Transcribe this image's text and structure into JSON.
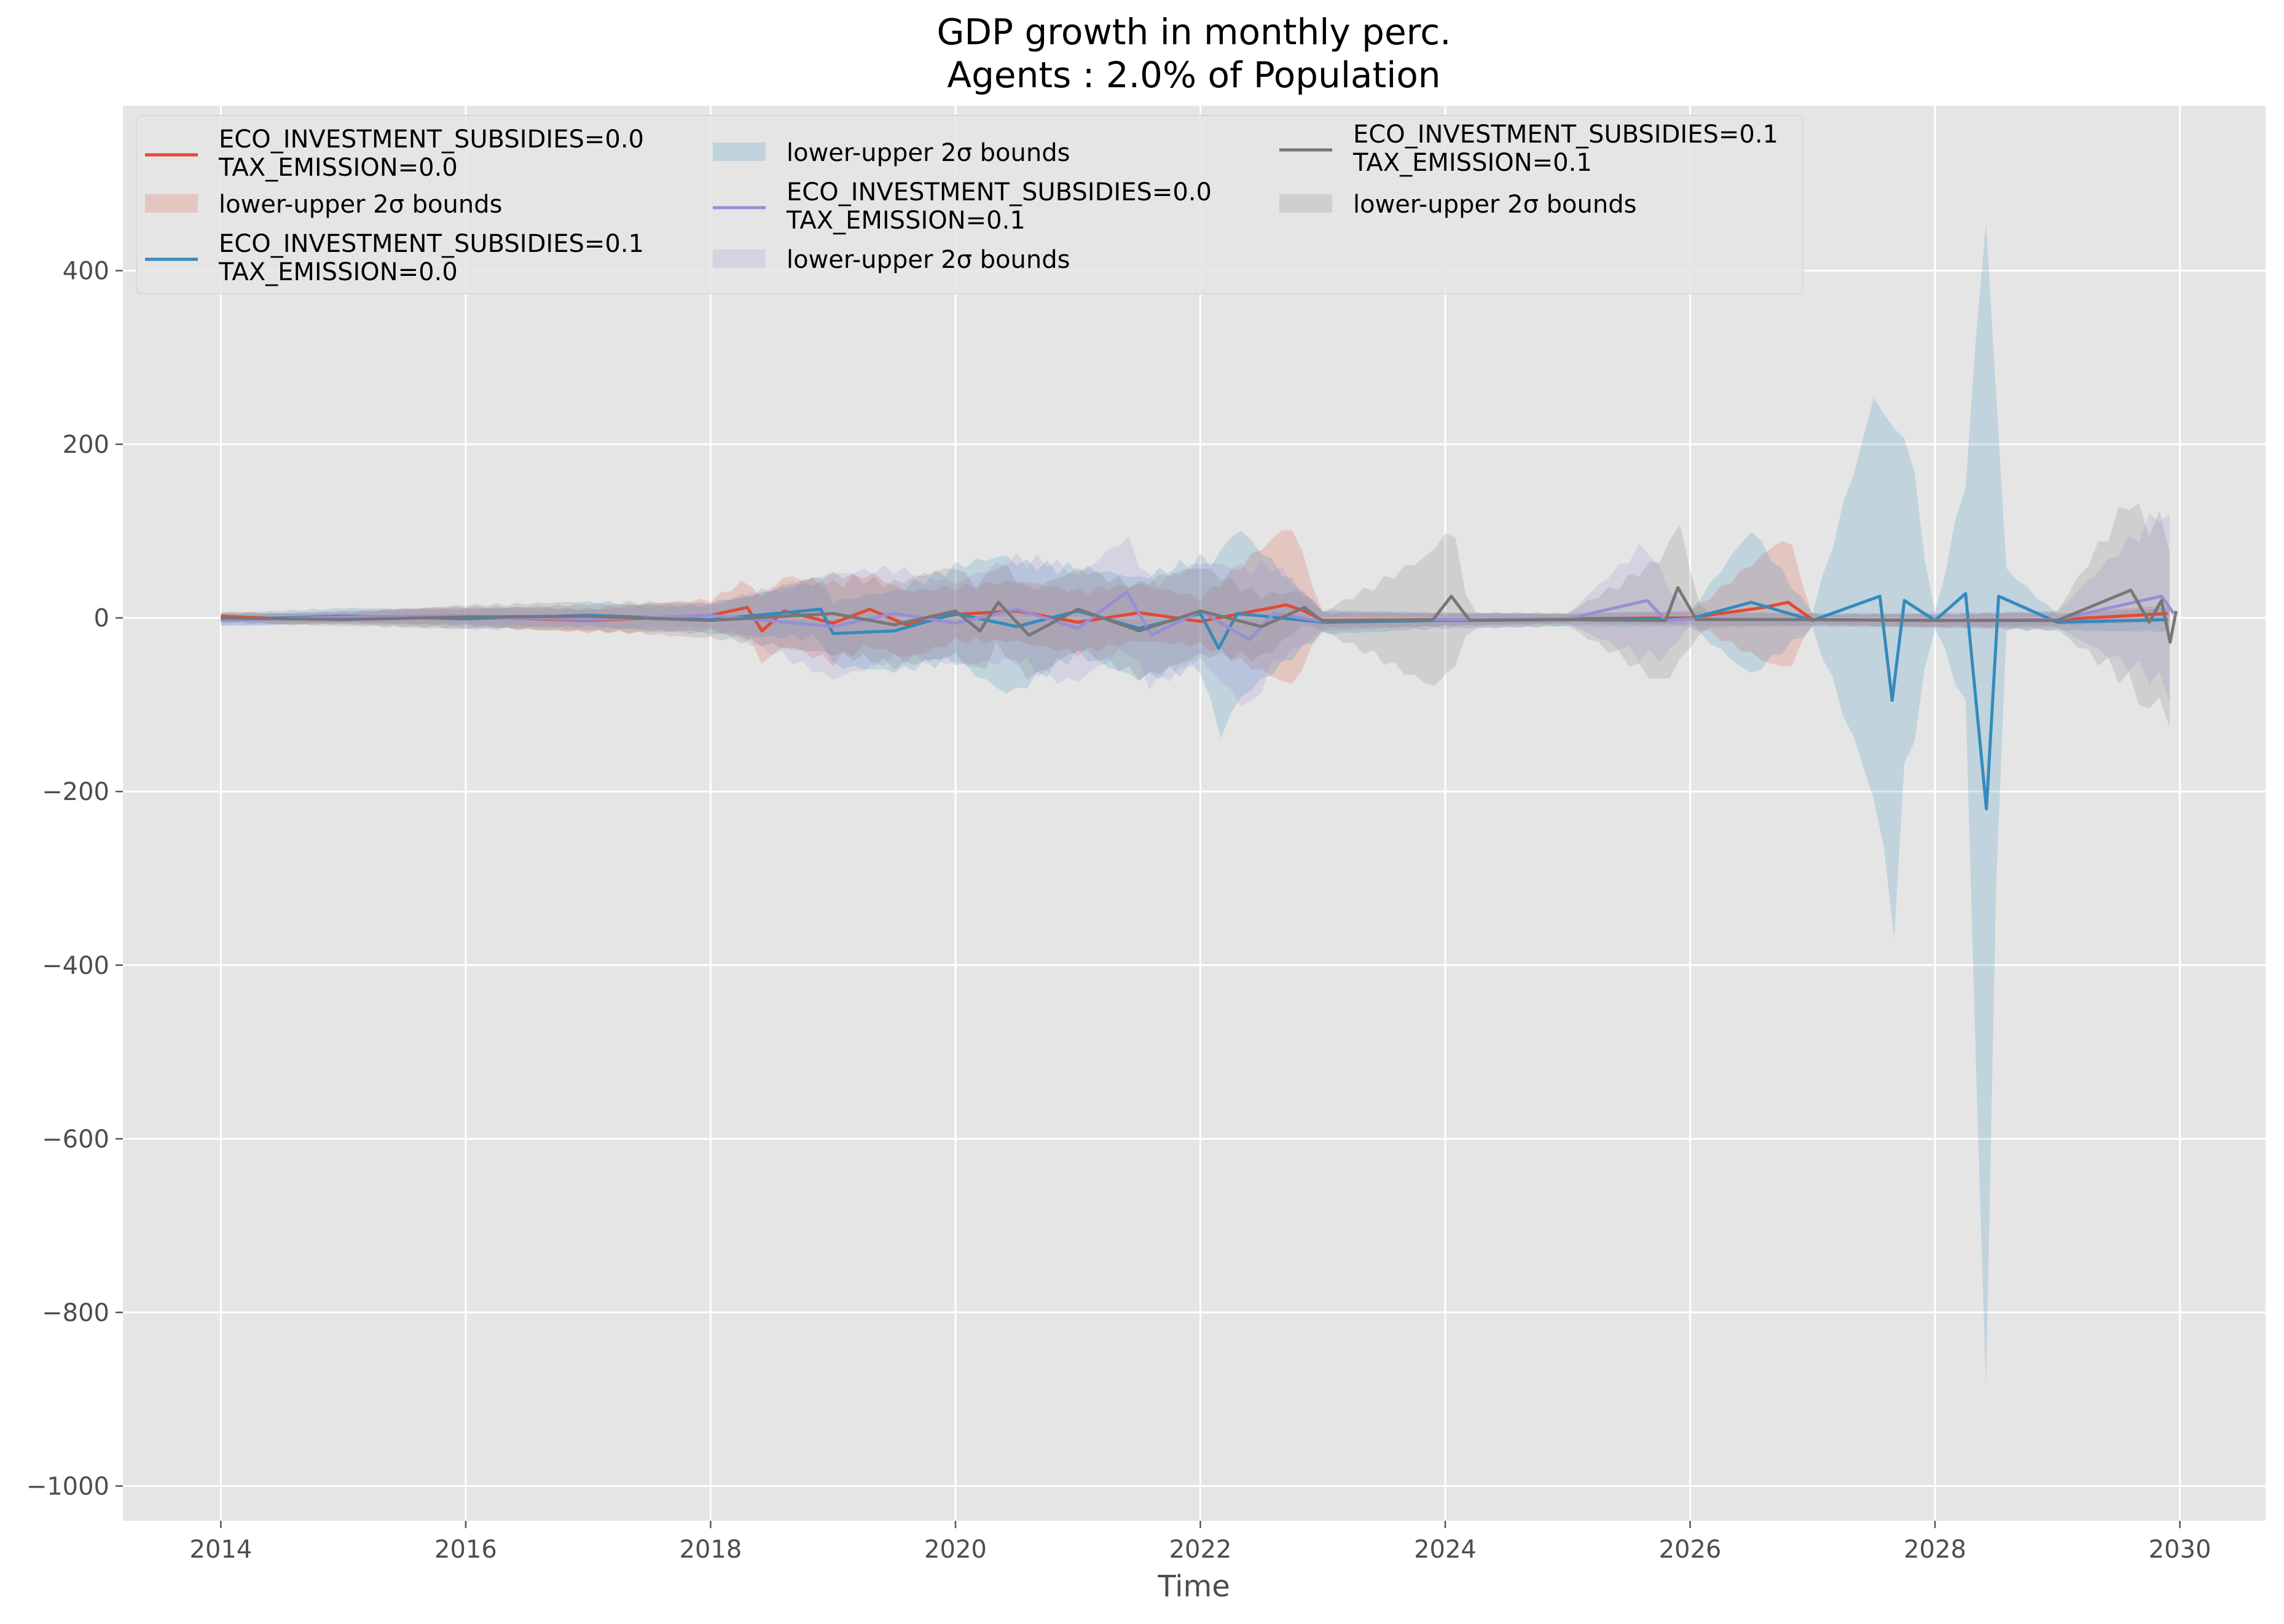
{
  "chart_data": {
    "type": "line",
    "title": "GDP growth in monthly perc.",
    "subtitle": "Agents : 2.0% of Population",
    "xlabel": "Time",
    "ylabel": "",
    "xlim": [
      2013.2,
      2030.7
    ],
    "ylim": [
      -1040,
      590
    ],
    "xticks": [
      2014,
      2016,
      2018,
      2020,
      2022,
      2024,
      2026,
      2028,
      2030
    ],
    "xtick_labels": [
      "2014",
      "2016",
      "2018",
      "2020",
      "2022",
      "2024",
      "2026",
      "2028",
      "2030"
    ],
    "yticks": [
      400,
      200,
      0,
      -200,
      -400,
      -600,
      -800,
      -1000
    ],
    "ytick_labels": [
      "400",
      "200",
      "0",
      "−200",
      "−400",
      "−600",
      "−800",
      "−1000"
    ],
    "grid": true,
    "legend_position": "top-left",
    "band_label": "lower-upper 2σ bounds",
    "colors": {
      "background": "#e5e5e5",
      "grid": "#ffffff",
      "red": "#e24a33",
      "blue": "#348abd",
      "purple": "#988ed5",
      "gray": "#777777"
    },
    "series": [
      {
        "line1": "ECO_INVESTMENT_SUBSIDIES=0.0",
        "line2": "TAX_EMISSION=0.0",
        "color": "#e24a33",
        "points": [
          [
            2014,
            2
          ],
          [
            2014.5,
            -1
          ],
          [
            2015,
            1
          ],
          [
            2016,
            2
          ],
          [
            2017,
            -3
          ],
          [
            2018,
            3
          ],
          [
            2018.3,
            12
          ],
          [
            2018.42,
            -15
          ],
          [
            2018.6,
            8
          ],
          [
            2019,
            -6
          ],
          [
            2019.3,
            10
          ],
          [
            2019.6,
            -8
          ],
          [
            2020,
            4
          ],
          [
            2020.5,
            8
          ],
          [
            2021,
            -5
          ],
          [
            2021.5,
            6
          ],
          [
            2022,
            -4
          ],
          [
            2022.7,
            15
          ],
          [
            2022.85,
            8
          ],
          [
            2023,
            -3
          ],
          [
            2024,
            -2
          ],
          [
            2025,
            -1
          ],
          [
            2026,
            0
          ],
          [
            2026.6,
            12
          ],
          [
            2026.8,
            18
          ],
          [
            2027,
            -2
          ],
          [
            2028,
            -3
          ],
          [
            2029,
            -2
          ],
          [
            2029.9,
            5
          ]
        ],
        "band": [
          [
            2014,
            6
          ],
          [
            2015,
            7
          ],
          [
            2016,
            12
          ],
          [
            2017,
            15
          ],
          [
            2018,
            20
          ],
          [
            2018.4,
            40
          ],
          [
            2019,
            50
          ],
          [
            2020,
            35
          ],
          [
            2021,
            40
          ],
          [
            2022,
            30
          ],
          [
            2022.75,
            100
          ],
          [
            2023,
            10
          ],
          [
            2024,
            8
          ],
          [
            2025,
            6
          ],
          [
            2026,
            8
          ],
          [
            2026.8,
            85
          ],
          [
            2027,
            6
          ],
          [
            2028,
            8
          ],
          [
            2029,
            8
          ],
          [
            2029.9,
            10
          ]
        ]
      },
      {
        "line1": "ECO_INVESTMENT_SUBSIDIES=0.1",
        "line2": "TAX_EMISSION=0.0",
        "color": "#348abd",
        "points": [
          [
            2014,
            -2
          ],
          [
            2015,
            2
          ],
          [
            2016,
            -1
          ],
          [
            2017,
            3
          ],
          [
            2018,
            -2
          ],
          [
            2018.9,
            10
          ],
          [
            2019,
            -18
          ],
          [
            2019.5,
            -15
          ],
          [
            2020,
            5
          ],
          [
            2020.5,
            -10
          ],
          [
            2021,
            8
          ],
          [
            2021.5,
            -12
          ],
          [
            2022,
            5
          ],
          [
            2022.15,
            -35
          ],
          [
            2022.3,
            5
          ],
          [
            2023,
            -5
          ],
          [
            2024,
            -3
          ],
          [
            2025,
            -2
          ],
          [
            2026,
            -1
          ],
          [
            2026.5,
            18
          ],
          [
            2027,
            -3
          ],
          [
            2027.55,
            25
          ],
          [
            2027.65,
            -95
          ],
          [
            2027.75,
            20
          ],
          [
            2028,
            -3
          ],
          [
            2028.25,
            28
          ],
          [
            2028.42,
            -220
          ],
          [
            2028.52,
            25
          ],
          [
            2029,
            -5
          ],
          [
            2029.9,
            -2
          ]
        ],
        "band": [
          [
            2014,
            8
          ],
          [
            2015,
            10
          ],
          [
            2016,
            12
          ],
          [
            2017,
            14
          ],
          [
            2018,
            18
          ],
          [
            2019,
            40
          ],
          [
            2020,
            60
          ],
          [
            2020.4,
            85
          ],
          [
            2021,
            55
          ],
          [
            2022,
            70
          ],
          [
            2022.2,
            120
          ],
          [
            2023,
            15
          ],
          [
            2024,
            10
          ],
          [
            2025,
            8
          ],
          [
            2026,
            10
          ],
          [
            2026.5,
            90
          ],
          [
            2027,
            10
          ],
          [
            2027.65,
            315
          ],
          [
            2028,
            10
          ],
          [
            2028.25,
            140
          ],
          [
            2028.42,
            740
          ],
          [
            2028.55,
            40
          ],
          [
            2029,
            10
          ],
          [
            2029.9,
            15
          ]
        ]
      },
      {
        "line1": "ECO_INVESTMENT_SUBSIDIES=0.0",
        "line2": "TAX_EMISSION=0.1",
        "color": "#988ed5",
        "points": [
          [
            2014,
            -3
          ],
          [
            2015,
            1
          ],
          [
            2016,
            2
          ],
          [
            2017,
            -2
          ],
          [
            2018,
            3
          ],
          [
            2019,
            -10
          ],
          [
            2019.5,
            5
          ],
          [
            2020,
            -6
          ],
          [
            2020.5,
            10
          ],
          [
            2021,
            -12
          ],
          [
            2021.4,
            30
          ],
          [
            2021.6,
            -20
          ],
          [
            2022,
            8
          ],
          [
            2022.4,
            -25
          ],
          [
            2022.6,
            5
          ],
          [
            2023,
            -4
          ],
          [
            2024,
            -2
          ],
          [
            2025,
            -1
          ],
          [
            2025.65,
            20
          ],
          [
            2025.8,
            -3
          ],
          [
            2026,
            -1
          ],
          [
            2027,
            -2
          ],
          [
            2028,
            -3
          ],
          [
            2029,
            -2
          ],
          [
            2029.85,
            25
          ],
          [
            2029.95,
            5
          ]
        ],
        "band": [
          [
            2014,
            6
          ],
          [
            2015,
            8
          ],
          [
            2016,
            10
          ],
          [
            2017,
            12
          ],
          [
            2018,
            15
          ],
          [
            2018.8,
            55
          ],
          [
            2019,
            65
          ],
          [
            2020,
            50
          ],
          [
            2020.8,
            75
          ],
          [
            2021,
            65
          ],
          [
            2021.4,
            70
          ],
          [
            2022,
            60
          ],
          [
            2022.4,
            90
          ],
          [
            2023,
            12
          ],
          [
            2024,
            8
          ],
          [
            2025,
            6
          ],
          [
            2025.65,
            75
          ],
          [
            2026,
            8
          ],
          [
            2027,
            8
          ],
          [
            2028,
            10
          ],
          [
            2029,
            10
          ],
          [
            2029.85,
            110
          ]
        ]
      },
      {
        "line1": "ECO_INVESTMENT_SUBSIDIES=0.1",
        "line2": "TAX_EMISSION=0.1",
        "color": "#777777",
        "points": [
          [
            2014,
            0
          ],
          [
            2015,
            -2
          ],
          [
            2016,
            1
          ],
          [
            2017,
            2
          ],
          [
            2018,
            -3
          ],
          [
            2019,
            5
          ],
          [
            2019.5,
            -8
          ],
          [
            2020,
            8
          ],
          [
            2020.2,
            -15
          ],
          [
            2020.35,
            18
          ],
          [
            2020.6,
            -20
          ],
          [
            2021,
            10
          ],
          [
            2021.5,
            -15
          ],
          [
            2022,
            8
          ],
          [
            2022.5,
            -10
          ],
          [
            2022.85,
            12
          ],
          [
            2023,
            -4
          ],
          [
            2023.9,
            -2
          ],
          [
            2024.05,
            25
          ],
          [
            2024.2,
            -3
          ],
          [
            2025,
            -2
          ],
          [
            2025.8,
            -3
          ],
          [
            2025.9,
            35
          ],
          [
            2026.05,
            -2
          ],
          [
            2027,
            -2
          ],
          [
            2028,
            -3
          ],
          [
            2029,
            -3
          ],
          [
            2029.6,
            32
          ],
          [
            2029.75,
            -5
          ],
          [
            2029.85,
            20
          ],
          [
            2029.92,
            -28
          ],
          [
            2029.97,
            8
          ]
        ],
        "band": [
          [
            2014,
            6
          ],
          [
            2015,
            8
          ],
          [
            2016,
            15
          ],
          [
            2017,
            18
          ],
          [
            2018,
            22
          ],
          [
            2019,
            50
          ],
          [
            2020,
            55
          ],
          [
            2020.6,
            55
          ],
          [
            2021,
            50
          ],
          [
            2021.6,
            60
          ],
          [
            2022,
            55
          ],
          [
            2022.5,
            40
          ],
          [
            2023,
            12
          ],
          [
            2024.05,
            95
          ],
          [
            2024.2,
            10
          ],
          [
            2025,
            8
          ],
          [
            2025.9,
            90
          ],
          [
            2026.1,
            10
          ],
          [
            2027,
            8
          ],
          [
            2028,
            8
          ],
          [
            2029,
            12
          ],
          [
            2029.6,
            120
          ],
          [
            2029.9,
            110
          ]
        ]
      }
    ]
  }
}
